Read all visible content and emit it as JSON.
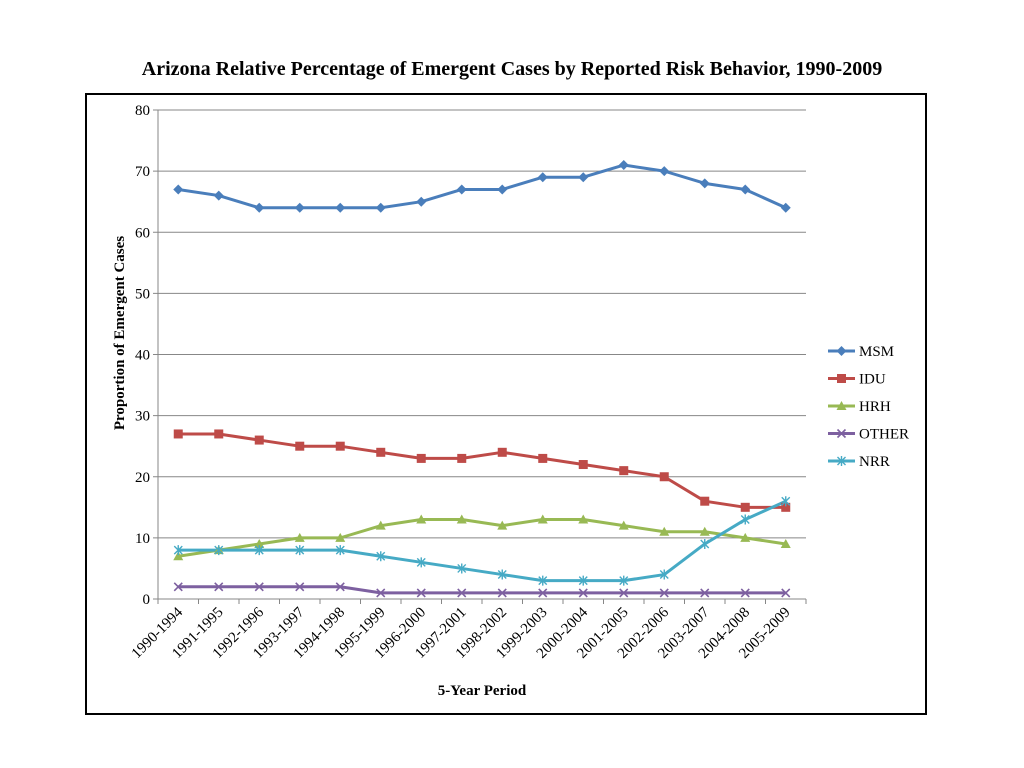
{
  "chart_data": {
    "type": "line",
    "title": "Arizona Relative Percentage of Emergent Cases by Reported Risk Behavior, 1990-2009",
    "xlabel": "5-Year Period",
    "ylabel": "Proportion of Emergent Cases",
    "ylim": [
      0,
      80
    ],
    "yticks": [
      "0",
      "10",
      "20",
      "30",
      "40",
      "50",
      "60",
      "70",
      "80"
    ],
    "grid": true,
    "legend_position": "right",
    "categories": [
      "1990-1994",
      "1991-1995",
      "1992-1996",
      "1993-1997",
      "1994-1998",
      "1995-1999",
      "1996-2000",
      "1997-2001",
      "1998-2002",
      "1999-2003",
      "2000-2004",
      "2001-2005",
      "2002-2006",
      "2003-2007",
      "2004-2008",
      "2005-2009"
    ],
    "series": [
      {
        "name": "MSM",
        "color": "#4a7ebb",
        "marker": "diamond",
        "values": [
          67,
          66,
          64,
          64,
          64,
          64,
          65,
          67,
          67,
          69,
          69,
          71,
          70,
          68,
          67,
          64
        ]
      },
      {
        "name": "IDU",
        "color": "#be4b48",
        "marker": "square",
        "values": [
          27,
          27,
          26,
          25,
          25,
          24,
          23,
          23,
          24,
          23,
          22,
          21,
          20,
          16,
          15,
          15
        ]
      },
      {
        "name": "HRH",
        "color": "#98b954",
        "marker": "triangle",
        "values": [
          7,
          8,
          9,
          10,
          10,
          12,
          13,
          13,
          12,
          13,
          13,
          12,
          11,
          11,
          10,
          9
        ]
      },
      {
        "name": "OTHER",
        "color": "#7d60a0",
        "marker": "x",
        "values": [
          2,
          2,
          2,
          2,
          2,
          1,
          1,
          1,
          1,
          1,
          1,
          1,
          1,
          1,
          1,
          1
        ]
      },
      {
        "name": "NRR",
        "color": "#46aac5",
        "marker": "asterisk",
        "values": [
          8,
          8,
          8,
          8,
          8,
          7,
          6,
          5,
          4,
          3,
          3,
          3,
          4,
          9,
          13,
          16
        ]
      }
    ]
  }
}
